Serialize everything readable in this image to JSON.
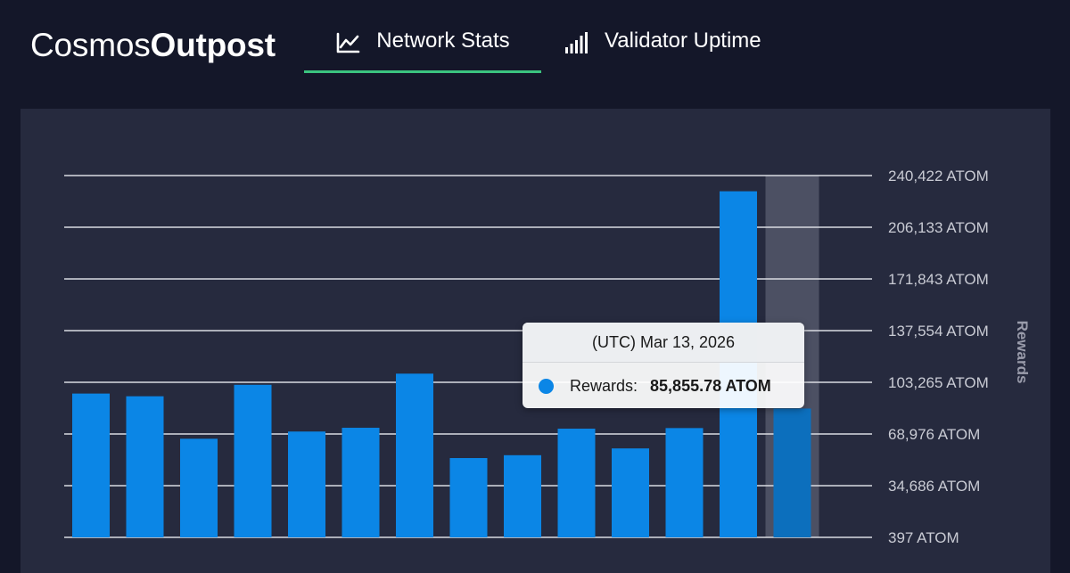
{
  "header": {
    "logo_light": "Cosmos",
    "logo_bold": "Outpost",
    "tabs": [
      {
        "label": "Network Stats",
        "icon": "line-chart-icon",
        "active": true
      },
      {
        "label": "Validator Uptime",
        "icon": "signal-bars-icon",
        "active": false
      }
    ],
    "active_tab_color": "#3bc47f"
  },
  "colors": {
    "background": "#141729",
    "panel": "#262a3e",
    "bar": "#0b86e6",
    "bar_hover": "#0c6fbd",
    "gridline": "#d9dbe2",
    "hover_band": "#53576a"
  },
  "chart_data": {
    "type": "bar",
    "ylabel": "Rewards",
    "unit": "ATOM",
    "y_ticks": [
      "397 ATOM",
      "34,686 ATOM",
      "68,976 ATOM",
      "103,265 ATOM",
      "137,554 ATOM",
      "171,843 ATOM",
      "206,133 ATOM",
      "240,422 ATOM"
    ],
    "ylim": [
      397,
      240422
    ],
    "values": [
      95800,
      94000,
      65800,
      101600,
      70600,
      73100,
      109000,
      53000,
      54900,
      72500,
      59400,
      72900,
      230000,
      85855.78
    ],
    "highlight_index": 13
  },
  "tooltip": {
    "date": "(UTC) Mar 13, 2026",
    "series_label": "Rewards:",
    "value": "85,855.78 ATOM"
  }
}
